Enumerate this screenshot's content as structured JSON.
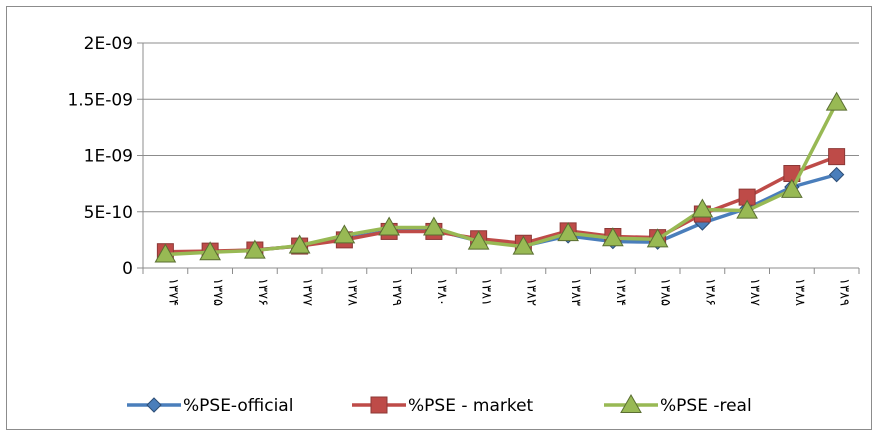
{
  "chart_data": {
    "type": "line",
    "categories": [
      "۱۳۷۴",
      "۱۳۷۵",
      "۱۳۷۶",
      "۱۳۷۷",
      "۱۳۷۸",
      "۱۳۷۹",
      "۱۳۸۰",
      "۱۳۸۱",
      "۱۳۸۲",
      "۱۳۸۳",
      "۱۳۸۴",
      "۱۳۸۵",
      "۱۳۸۶",
      "۱۳۸۷",
      "۱۳۸۸",
      "۱۳۸۹"
    ],
    "ylim": [
      0,
      2e-09
    ],
    "yticks": [
      {
        "value": 0,
        "label": "0"
      },
      {
        "value": 5e-10,
        "label": "5E-10"
      },
      {
        "value": 1e-09,
        "label": "1E-09"
      },
      {
        "value": 1.5e-09,
        "label": "1.5E-09"
      },
      {
        "value": 2e-09,
        "label": "2E-09"
      }
    ],
    "grid": true,
    "legend_position": "bottom",
    "series": [
      {
        "name": "%PSE-official",
        "marker": "diamond",
        "color": "#4a7ebb",
        "values": [
          1.3e-10,
          1.45e-10,
          1.6e-10,
          1.95e-10,
          2.6e-10,
          3.3e-10,
          3.4e-10,
          2.4e-10,
          1.95e-10,
          2.85e-10,
          2.35e-10,
          2.3e-10,
          4e-10,
          5.3e-10,
          7.2e-10,
          8.3e-10
        ]
      },
      {
        "name": "%PSE - market",
        "marker": "square",
        "color": "#be4b48",
        "values": [
          1.45e-10,
          1.5e-10,
          1.6e-10,
          1.95e-10,
          2.5e-10,
          3.25e-10,
          3.25e-10,
          2.6e-10,
          2.2e-10,
          3.3e-10,
          2.8e-10,
          2.7e-10,
          4.8e-10,
          6.3e-10,
          8.4e-10,
          9.9e-10
        ]
      },
      {
        "name": "%PSE -real",
        "marker": "triangle",
        "color": "#98b954",
        "values": [
          1.2e-10,
          1.4e-10,
          1.55e-10,
          2e-10,
          2.9e-10,
          3.6e-10,
          3.6e-10,
          2.35e-10,
          1.9e-10,
          3.1e-10,
          2.65e-10,
          2.55e-10,
          5.2e-10,
          5.1e-10,
          6.95e-10,
          1.47e-09
        ]
      }
    ]
  }
}
